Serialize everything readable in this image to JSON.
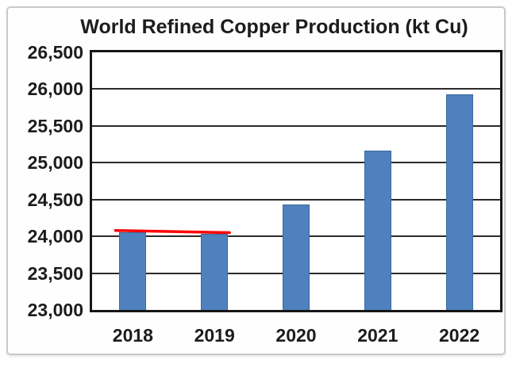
{
  "chart_data": {
    "type": "bar",
    "title": "World Refined Copper Production (kt Cu)",
    "categories": [
      "2018",
      "2019",
      "2020",
      "2021",
      "2022"
    ],
    "values": [
      24060,
      24030,
      24430,
      25170,
      25930
    ],
    "xlabel": "",
    "ylabel": "",
    "ylim": [
      23000,
      26500
    ],
    "ytick_step": 500,
    "yticks": [
      {
        "value": 23000,
        "label": "23,000"
      },
      {
        "value": 23500,
        "label": "23,500"
      },
      {
        "value": 24000,
        "label": "24,000"
      },
      {
        "value": 24500,
        "label": "24,500"
      },
      {
        "value": 25000,
        "label": "25,000"
      },
      {
        "value": 25500,
        "label": "25,500"
      },
      {
        "value": 26000,
        "label": "26,000"
      },
      {
        "value": 26500,
        "label": "26,500"
      }
    ],
    "grid": true,
    "legend": "none",
    "colors": {
      "bar_fill": "#4e81bd",
      "bar_border": "#3b6aa0",
      "gridline": "#2b2b2b",
      "plot_border": "#161616",
      "text": "#1c1c1c",
      "annotation_red": "#ff0000",
      "frame_border": "#c9c9c9",
      "background": "#ffffff"
    },
    "annotation": {
      "shape": "line",
      "color": "#ff0000",
      "span_categories": [
        "2018",
        "2019"
      ],
      "y_start": 24080,
      "y_end": 24050
    }
  }
}
